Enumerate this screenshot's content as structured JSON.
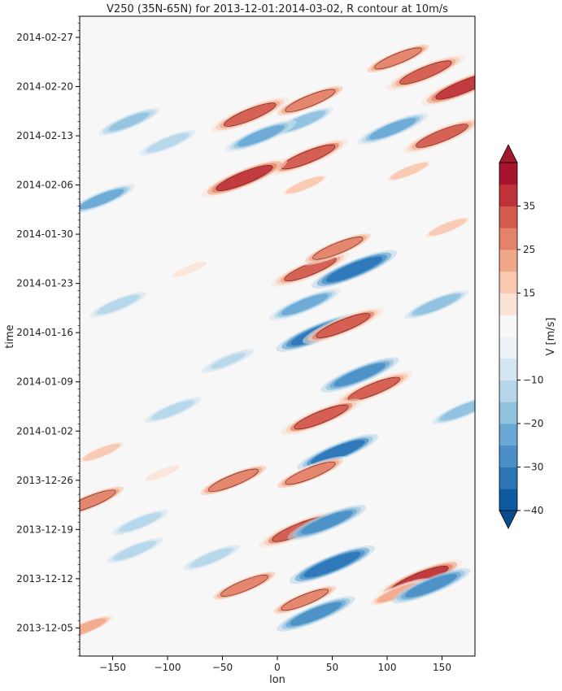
{
  "chart_data": {
    "type": "heatmap",
    "title": "V250 (35N-65N) for 2013-12-01:2014-03-02,    R contour at 10m/s",
    "xlabel": "lon",
    "ylabel": "time",
    "xlim": [
      -180,
      180
    ],
    "ylim": [
      "2013-12-01",
      "2014-03-02"
    ],
    "x_ticks": [
      -150,
      -100,
      -50,
      0,
      50,
      100,
      150
    ],
    "x_tick_labels": [
      "−150",
      "−100",
      "−50",
      "0",
      "50",
      "100",
      "150"
    ],
    "y_ticks": [
      "2013-12-05",
      "2013-12-12",
      "2013-12-19",
      "2013-12-26",
      "2014-01-02",
      "2014-01-09",
      "2014-01-16",
      "2014-01-23",
      "2014-01-30",
      "2014-02-06",
      "2014-02-13",
      "2014-02-20",
      "2014-02-27"
    ],
    "colorbar": {
      "label": "V [m/s]",
      "levels": [
        -40,
        -35,
        -30,
        -25,
        -20,
        -15,
        -10,
        -5,
        5,
        10,
        15,
        20,
        25,
        30,
        35,
        40
      ],
      "tick_values": [
        35,
        25,
        15,
        -10,
        -20,
        -30,
        -40
      ],
      "tick_labels": [
        "35",
        "25",
        "15",
        "−10",
        "−20",
        "−30",
        "−40"
      ],
      "colors": [
        "#0e5aa0",
        "#2b74b6",
        "#4a90c6",
        "#6aa8d4",
        "#91c2e0",
        "#b6d6ea",
        "#d4e6f1",
        "#ecf2f7",
        "#f7f7f7",
        "#fbe3d8",
        "#f8c8b0",
        "#f1a88a",
        "#e4836a",
        "#d25a4e",
        "#bd3339",
        "#a8142b"
      ],
      "extend": "both"
    },
    "features": [
      {
        "lon": 28,
        "date": "2014-02-10",
        "v": 32
      },
      {
        "lon": 30,
        "date": "2014-02-18",
        "v": 28
      },
      {
        "lon": 22,
        "date": "2014-02-15",
        "v": -20
      },
      {
        "lon": 25,
        "date": "2014-02-06",
        "v": 15
      },
      {
        "lon": 30,
        "date": "2014-01-25",
        "v": 30
      },
      {
        "lon": 25,
        "date": "2014-01-20",
        "v": -25
      },
      {
        "lon": 38,
        "date": "2014-01-16",
        "v": -35
      },
      {
        "lon": 55,
        "date": "2014-01-28",
        "v": 28
      },
      {
        "lon": 70,
        "date": "2014-01-25",
        "v": -35
      },
      {
        "lon": 60,
        "date": "2014-01-17",
        "v": 32
      },
      {
        "lon": 88,
        "date": "2014-01-08",
        "v": 30
      },
      {
        "lon": 75,
        "date": "2014-01-10",
        "v": -30
      },
      {
        "lon": 40,
        "date": "2014-01-04",
        "v": 32
      },
      {
        "lon": 55,
        "date": "2013-12-30",
        "v": -32
      },
      {
        "lon": 30,
        "date": "2013-12-27",
        "v": 28
      },
      {
        "lon": 20,
        "date": "2013-12-19",
        "v": 32
      },
      {
        "lon": 45,
        "date": "2013-12-20",
        "v": -30
      },
      {
        "lon": 50,
        "date": "2013-12-14",
        "v": -35
      },
      {
        "lon": 35,
        "date": "2013-12-07",
        "v": -30
      },
      {
        "lon": 25,
        "date": "2013-12-09",
        "v": 25
      },
      {
        "lon": 110,
        "date": "2014-02-24",
        "v": 25
      },
      {
        "lon": 135,
        "date": "2014-02-22",
        "v": 30
      },
      {
        "lon": 150,
        "date": "2014-02-13",
        "v": 30
      },
      {
        "lon": 105,
        "date": "2014-02-14",
        "v": -25
      },
      {
        "lon": 120,
        "date": "2014-02-08",
        "v": 15
      },
      {
        "lon": 170,
        "date": "2014-02-20",
        "v": 35
      },
      {
        "lon": 155,
        "date": "2014-01-31",
        "v": 15
      },
      {
        "lon": 145,
        "date": "2014-01-20",
        "v": -20
      },
      {
        "lon": 130,
        "date": "2013-12-12",
        "v": 35
      },
      {
        "lon": 110,
        "date": "2013-12-10",
        "v": 20
      },
      {
        "lon": 140,
        "date": "2013-12-11",
        "v": -30
      },
      {
        "lon": 170,
        "date": "2014-01-05",
        "v": -20
      },
      {
        "lon": 200,
        "date": "2014-02-04",
        "v": -22
      },
      {
        "lon": 225,
        "date": "2014-02-15",
        "v": -18
      },
      {
        "lon": 215,
        "date": "2014-01-20",
        "v": -15
      },
      {
        "lon": 200,
        "date": "2013-12-30",
        "v": 15
      },
      {
        "lon": 190,
        "date": "2013-12-23",
        "v": 28
      },
      {
        "lon": 235,
        "date": "2013-12-20",
        "v": -15
      },
      {
        "lon": 185,
        "date": "2013-12-05",
        "v": 20
      },
      {
        "lon": 230,
        "date": "2013-12-16",
        "v": -15
      },
      {
        "lon": 260,
        "date": "2014-02-12",
        "v": -15
      },
      {
        "lon": 280,
        "date": "2014-01-25",
        "v": 12
      },
      {
        "lon": 265,
        "date": "2014-01-05",
        "v": -15
      },
      {
        "lon": 255,
        "date": "2013-12-27",
        "v": 12
      },
      {
        "lon": 300,
        "date": "2013-12-15",
        "v": -15
      },
      {
        "lon": 335,
        "date": "2014-02-16",
        "v": 30
      },
      {
        "lon": 330,
        "date": "2014-02-07",
        "v": 35
      },
      {
        "lon": 345,
        "date": "2014-02-13",
        "v": -25
      },
      {
        "lon": 320,
        "date": "2013-12-26",
        "v": 28
      },
      {
        "lon": 330,
        "date": "2013-12-11",
        "v": 25
      },
      {
        "lon": 315,
        "date": "2014-01-12",
        "v": -12
      }
    ]
  }
}
